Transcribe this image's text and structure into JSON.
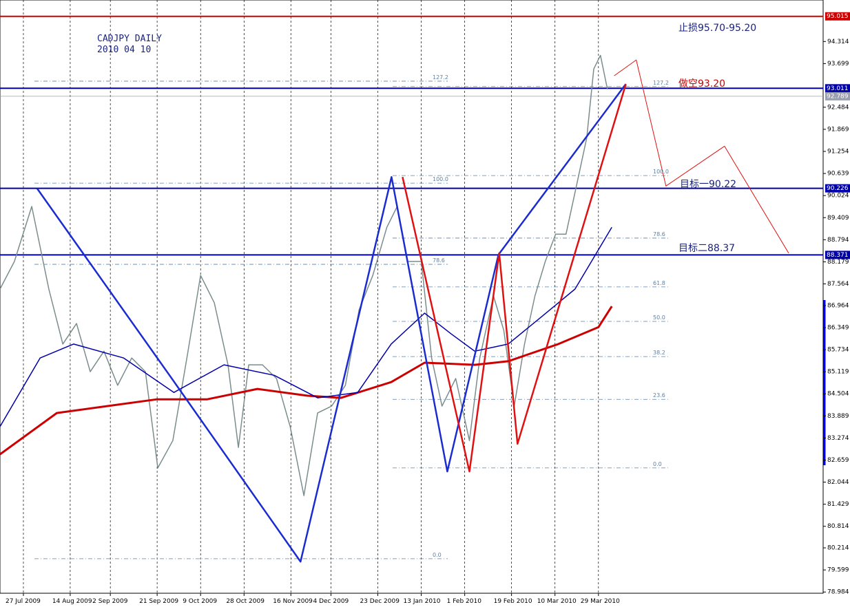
{
  "chart_data": {
    "type": "line",
    "title": "CADJPY  DAILY",
    "subtitle": "2010 04 10",
    "annotations": [
      {
        "text": "止损95.70-95.20",
        "color": "#1a237e"
      },
      {
        "text": "做空93.20",
        "color": "#cc0000"
      },
      {
        "text": "目标一90.22",
        "color": "#1a237e"
      },
      {
        "text": "目标二88.37",
        "color": "#1a237e"
      }
    ],
    "xlim": [
      -7,
      239
    ],
    "xticks": [
      {
        "value": 0,
        "label": "27 Jul 2009"
      },
      {
        "value": 14,
        "label": "14 Aug 2009"
      },
      {
        "value": 26,
        "label": "2 Sep 2009"
      },
      {
        "value": 40,
        "label": "21 Sep 2009"
      },
      {
        "value": 53,
        "label": "9 Oct 2009"
      },
      {
        "value": 66,
        "label": "28 Oct 2009"
      },
      {
        "value": 80,
        "label": "16 Nov 2009"
      },
      {
        "value": 92,
        "label": "4 Dec 2009"
      },
      {
        "value": 106,
        "label": "23 Dec 2009"
      },
      {
        "value": 119,
        "label": "13 Jan 2010"
      },
      {
        "value": 132,
        "label": "1 Feb 2010"
      },
      {
        "value": 146,
        "label": "19 Feb 2010"
      },
      {
        "value": 159,
        "label": "10 Mar 2010"
      },
      {
        "value": 172,
        "label": "29 Mar 2010"
      }
    ],
    "ylim": [
      78.95,
      95.47
    ],
    "yticks": [
      94.314,
      93.699,
      92.484,
      91.869,
      91.254,
      90.639,
      90.024,
      89.409,
      88.794,
      88.179,
      87.564,
      86.964,
      86.349,
      85.734,
      85.119,
      84.504,
      83.889,
      83.274,
      82.659,
      82.044,
      81.429,
      80.814,
      80.214,
      79.599,
      78.984
    ],
    "grid": true,
    "levels": [
      {
        "value": 95.015,
        "color": "#cc0000"
      },
      {
        "value": 93.011,
        "color": "#0000aa"
      },
      {
        "value": 92.789,
        "color": "#9aa0b0"
      },
      {
        "value": 90.226,
        "color": "#0000aa"
      },
      {
        "value": 88.371,
        "color": "#0000aa"
      }
    ],
    "fib_groups": [
      {
        "labels": [
          "127.2",
          "100.0",
          "78.6",
          "0.0"
        ],
        "prices": [
          93.21,
          90.37,
          88.11,
          79.91
        ]
      },
      {
        "labels": [
          "127.2",
          "100.0",
          "78.6",
          "61.8",
          "50.0",
          "38.2",
          "23.6",
          "0.0"
        ],
        "prices": [
          93.06,
          90.58,
          88.84,
          87.48,
          86.52,
          85.54,
          84.35,
          82.44
        ]
      }
    ],
    "series": [
      {
        "color": "#7a8c8c",
        "width": 1.5,
        "x": [
          -7,
          -2.7,
          2.5,
          7.6,
          11.8,
          15.9,
          20,
          24.1,
          28.2,
          32.4,
          36.5,
          40.2,
          44.7,
          48.9,
          53,
          57.1,
          61.2,
          64.3,
          67.4,
          71.5,
          75.7,
          79.8,
          83.9,
          88,
          92.2,
          96.3,
          100.4,
          104.5,
          108.7,
          111.8,
          114.8,
          119,
          122.1,
          125.2,
          129.3,
          133.4,
          136.5,
          140.6,
          143.7,
          146.8,
          149.9,
          153,
          156.1,
          159.2,
          162.3,
          165.4,
          168.5,
          170.6,
          172.6,
          174.7
        ],
        "values": [
          87.42,
          88.19,
          89.72,
          87.42,
          85.89,
          86.46,
          85.12,
          85.69,
          84.74,
          85.5,
          85.12,
          82.44,
          83.2,
          85.5,
          87.8,
          87.04,
          85.31,
          83.01,
          85.31,
          85.31,
          84.93,
          83.59,
          81.67,
          83.97,
          84.16,
          84.74,
          86.84,
          87.8,
          89.14,
          89.72,
          88.19,
          88.19,
          85.5,
          84.16,
          84.93,
          83.2,
          85.5,
          87.23,
          86.27,
          84.16,
          85.89,
          87.23,
          88.19,
          88.95,
          88.95,
          90.29,
          91.63,
          93.55,
          93.93,
          92.98
        ]
      },
      {
        "color": "#cc0000",
        "width": 3,
        "x": [
          -7,
          10,
          25,
          40,
          55,
          70,
          85,
          95,
          110,
          120,
          135,
          145,
          160,
          172,
          176
        ],
        "values": [
          82.82,
          83.97,
          84.16,
          84.35,
          84.35,
          84.64,
          84.45,
          84.39,
          84.83,
          85.37,
          85.31,
          85.41,
          85.89,
          86.36,
          86.94
        ]
      },
      {
        "color": "#0000aa",
        "width": 1.5,
        "x": [
          -7,
          5,
          15,
          30,
          45,
          60,
          75,
          88,
          100,
          110,
          120,
          128,
          135,
          145,
          155,
          165,
          176
        ],
        "values": [
          83.59,
          85.5,
          85.89,
          85.5,
          84.54,
          85.31,
          85.02,
          84.39,
          84.54,
          85.89,
          86.75,
          86.17,
          85.69,
          85.89,
          86.65,
          87.42,
          89.14
        ]
      },
      {
        "color": "#1a2bd0",
        "width": 2.5,
        "x": [
          4.1,
          43.7,
          82.9,
          110.1,
          126.8,
          142.1,
          180.2
        ],
        "values": [
          90.22,
          85.02,
          79.83,
          90.54,
          82.34,
          88.38,
          93.13
        ]
      },
      {
        "color": "#e01010",
        "width": 2.5,
        "x": [
          113.4,
          133.4,
          142.3,
          147.8,
          180.2
        ],
        "values": [
          90.54,
          82.34,
          88.42,
          83.11,
          93.13
        ]
      },
      {
        "color": "#e01010",
        "width": 1,
        "x": [
          176.7,
          183.3,
          192.2,
          209.7,
          228.9
        ],
        "values": [
          93.36,
          93.8,
          90.29,
          91.4,
          88.42
        ]
      }
    ]
  }
}
